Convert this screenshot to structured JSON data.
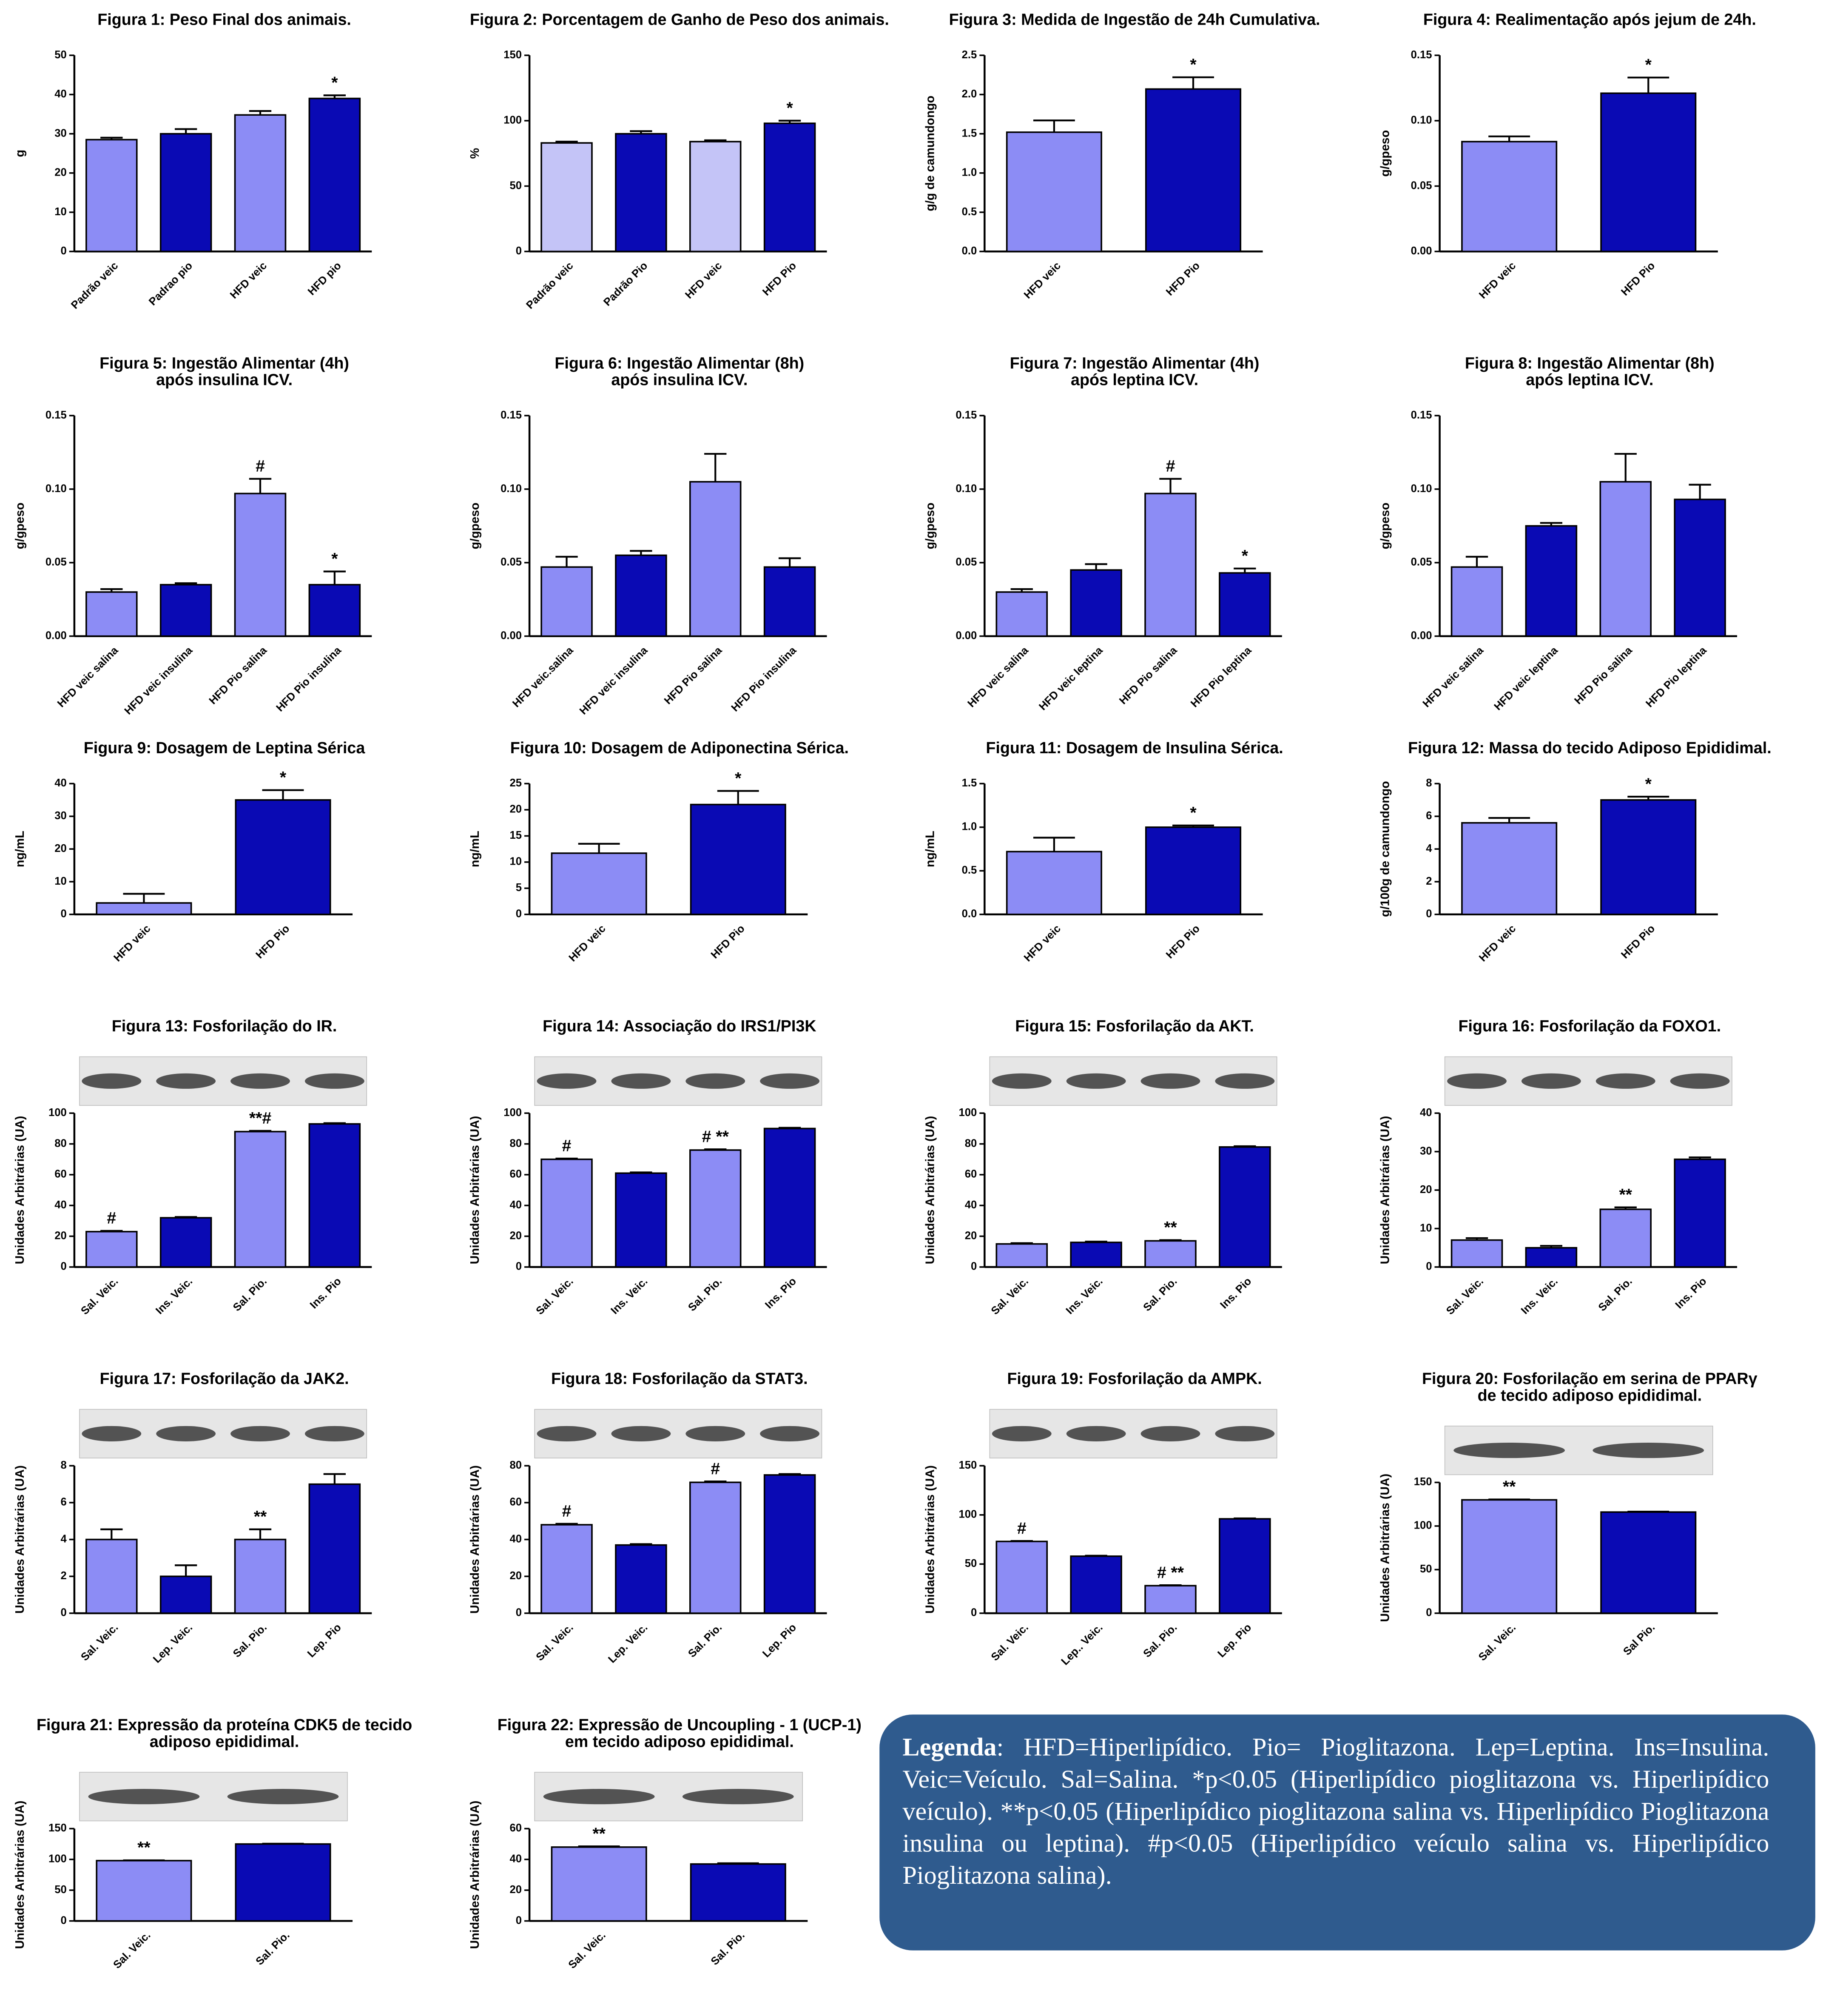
{
  "chart_data": [
    {
      "type": "bar",
      "title": [
        "Figura 1: Peso Final dos animais."
      ],
      "ylabel": "g",
      "categories": [
        "Padrão veic",
        "Padrao pio",
        "HFD veic",
        "HFD pio"
      ],
      "values": [
        28.5,
        30,
        34.8,
        39
      ],
      "errors": [
        0.5,
        1.2,
        1,
        0.8
      ],
      "colors": [
        "#8c8cf5",
        "#0a0ab4",
        "#8c8cf5",
        "#0a0ab4"
      ],
      "markers": [
        null,
        null,
        null,
        "*"
      ],
      "ylim": [
        0,
        50
      ],
      "yticks": [
        0,
        10,
        20,
        30,
        40,
        50
      ]
    },
    {
      "type": "bar",
      "title": [
        "Figura 2: Porcentagem de Ganho de Peso dos animais."
      ],
      "ylabel": "%",
      "categories": [
        "Padrão veic",
        "Padrão Pio",
        "HFD veic",
        "HFD Pio"
      ],
      "values": [
        83,
        90,
        84,
        98
      ],
      "errors": [
        1,
        2,
        1,
        2
      ],
      "colors": [
        "#c4c4f7",
        "#0a0ab4",
        "#c4c4f7",
        "#0a0ab4"
      ],
      "markers": [
        null,
        null,
        null,
        "*"
      ],
      "ylim": [
        0,
        150
      ],
      "yticks": [
        0,
        50,
        100,
        150
      ]
    },
    {
      "type": "bar",
      "title": [
        "Figura 3: Medida de Ingestão de 24h Cumulativa."
      ],
      "ylabel": "g/g de camundongo",
      "categories": [
        "HFD veic",
        "HFD Pio"
      ],
      "values": [
        1.52,
        2.07
      ],
      "errors": [
        0.15,
        0.15
      ],
      "colors": [
        "#8c8cf5",
        "#0a0ab4"
      ],
      "markers": [
        null,
        "*"
      ],
      "ylim": [
        0,
        2.5
      ],
      "yticks": [
        {
          "value": 0,
          "label": "0.0"
        },
        {
          "value": 0.5,
          "label": "0.5"
        },
        {
          "value": 1,
          "label": "1.0"
        },
        {
          "value": 1.5,
          "label": "1.5"
        },
        {
          "value": 2,
          "label": "2.0"
        },
        {
          "value": 2.5,
          "label": "2.5"
        }
      ]
    },
    {
      "type": "bar",
      "title": [
        "Figura 4: Realimentação após jejum de 24h."
      ],
      "ylabel": "g/gpeso",
      "categories": [
        "HFD veic",
        "HFD Pio"
      ],
      "values": [
        0.084,
        0.121
      ],
      "errors": [
        0.004,
        0.012
      ],
      "colors": [
        "#8c8cf5",
        "#0a0ab4"
      ],
      "markers": [
        null,
        "*"
      ],
      "ylim": [
        0,
        0.15
      ],
      "yticks": [
        {
          "value": 0,
          "label": "0.00"
        },
        {
          "value": 0.05,
          "label": "0.05"
        },
        {
          "value": 0.1,
          "label": "0.10"
        },
        {
          "value": 0.15,
          "label": "0.15"
        }
      ]
    },
    {
      "type": "bar",
      "title": [
        "Figura 5: Ingestão Alimentar (4h)",
        "após insulina ICV."
      ],
      "ylabel": "g/gpeso",
      "categories": [
        "HFD veic salina",
        "HFD veic insulina",
        "HFD Pio salina",
        "HFD Pio insulina"
      ],
      "values": [
        0.03,
        0.035,
        0.097,
        0.035
      ],
      "errors": [
        0.002,
        0.001,
        0.01,
        0.009
      ],
      "colors": [
        "#8c8cf5",
        "#0a0ab4",
        "#8c8cf5",
        "#0a0ab4"
      ],
      "markers": [
        null,
        null,
        "#",
        "*"
      ],
      "ylim": [
        0,
        0.15
      ],
      "yticks": [
        {
          "value": 0,
          "label": "0.00"
        },
        {
          "value": 0.05,
          "label": "0.05"
        },
        {
          "value": 0.1,
          "label": "0.10"
        },
        {
          "value": 0.15,
          "label": "0.15"
        }
      ]
    },
    {
      "type": "bar",
      "title": [
        "Figura 6: Ingestão Alimentar (8h)",
        "após insulina ICV."
      ],
      "ylabel": "g/gpeso",
      "categories": [
        "HFD veic.salina",
        "HFD veic insulina",
        "HFD Pio salina",
        "HFD Pio insulina"
      ],
      "values": [
        0.047,
        0.055,
        0.105,
        0.047
      ],
      "errors": [
        0.007,
        0.003,
        0.019,
        0.006
      ],
      "colors": [
        "#8c8cf5",
        "#0a0ab4",
        "#8c8cf5",
        "#0a0ab4"
      ],
      "ylim": [
        0,
        0.15
      ],
      "yticks": [
        {
          "value": 0,
          "label": "0.00"
        },
        {
          "value": 0.05,
          "label": "0.05"
        },
        {
          "value": 0.1,
          "label": "0.10"
        },
        {
          "value": 0.15,
          "label": "0.15"
        }
      ]
    },
    {
      "type": "bar",
      "title": [
        "Figura 7: Ingestão Alimentar (4h)",
        "após leptina ICV."
      ],
      "ylabel": "g/gpeso",
      "categories": [
        "HFD veic salina",
        "HFD veic leptina",
        "HFD Pio salina",
        "HFD Pio leptina"
      ],
      "values": [
        0.03,
        0.045,
        0.097,
        0.043
      ],
      "errors": [
        0.002,
        0.004,
        0.01,
        0.003
      ],
      "colors": [
        "#8c8cf5",
        "#0a0ab4",
        "#8c8cf5",
        "#0a0ab4"
      ],
      "markers": [
        null,
        null,
        "#",
        "*"
      ],
      "ylim": [
        0,
        0.15
      ],
      "yticks": [
        {
          "value": 0,
          "label": "0.00"
        },
        {
          "value": 0.05,
          "label": "0.05"
        },
        {
          "value": 0.1,
          "label": "0.10"
        },
        {
          "value": 0.15,
          "label": "0.15"
        }
      ]
    },
    {
      "type": "bar",
      "title": [
        "Figura 8: Ingestão Alimentar (8h)",
        "após leptina ICV."
      ],
      "ylabel": "g/gpeso",
      "categories": [
        "HFD veic salina",
        "HFD veic leptina",
        "HFD Pio salina",
        "HFD Pio leptina"
      ],
      "values": [
        0.047,
        0.075,
        0.105,
        0.093
      ],
      "errors": [
        0.007,
        0.002,
        0.019,
        0.01
      ],
      "colors": [
        "#8c8cf5",
        "#0a0ab4",
        "#8c8cf5",
        "#0a0ab4"
      ],
      "ylim": [
        0,
        0.15
      ],
      "yticks": [
        {
          "value": 0,
          "label": "0.00"
        },
        {
          "value": 0.05,
          "label": "0.05"
        },
        {
          "value": 0.1,
          "label": "0.10"
        },
        {
          "value": 0.15,
          "label": "0.15"
        }
      ]
    },
    {
      "type": "bar",
      "title": [
        "Figura 9: Dosagem de Leptina Sérica"
      ],
      "ylabel": "ng/mL",
      "categories": [
        "HFD veic",
        "HFD Pio"
      ],
      "values": [
        3.5,
        35
      ],
      "errors": [
        2.8,
        3
      ],
      "colors": [
        "#8c8cf5",
        "#0a0ab4"
      ],
      "markers": [
        null,
        "*"
      ],
      "ylim": [
        0,
        40
      ],
      "yticks": [
        0,
        10,
        20,
        30,
        40
      ]
    },
    {
      "type": "bar",
      "title": [
        "Figura 10: Dosagem de Adiponectina Sérica."
      ],
      "ylabel": "ng/mL",
      "categories": [
        "HFD veic",
        "HFD Pio"
      ],
      "values": [
        11.7,
        21
      ],
      "errors": [
        1.8,
        2.6
      ],
      "colors": [
        "#8c8cf5",
        "#0a0ab4"
      ],
      "markers": [
        null,
        "*"
      ],
      "ylim": [
        0,
        25
      ],
      "yticks": [
        0,
        5,
        10,
        15,
        20,
        25
      ]
    },
    {
      "type": "bar",
      "title": [
        "Figura 11: Dosagem de Insulina Sérica."
      ],
      "ylabel": "ng/mL",
      "categories": [
        "HFD veic",
        "HFD Pio"
      ],
      "values": [
        0.72,
        1.0
      ],
      "errors": [
        0.16,
        0.02
      ],
      "colors": [
        "#8c8cf5",
        "#0a0ab4"
      ],
      "markers": [
        null,
        "*"
      ],
      "ylim": [
        0,
        1.5
      ],
      "yticks": [
        {
          "value": 0,
          "label": "0.0"
        },
        {
          "value": 0.5,
          "label": "0.5"
        },
        {
          "value": 1,
          "label": "1.0"
        },
        {
          "value": 1.5,
          "label": "1.5"
        }
      ]
    },
    {
      "type": "bar",
      "title": [
        "Figura 12: Massa do tecido Adiposo Epididimal."
      ],
      "ylabel": "g/100g de camundongo",
      "categories": [
        "HFD veic",
        "HFD Pio"
      ],
      "values": [
        5.6,
        7.0
      ],
      "errors": [
        0.3,
        0.2
      ],
      "colors": [
        "#8c8cf5",
        "#0a0ab4"
      ],
      "markers": [
        null,
        "*"
      ],
      "ylim": [
        0,
        8
      ],
      "yticks": [
        0,
        2,
        4,
        6,
        8
      ]
    },
    {
      "type": "bar",
      "title": [
        "Figura 13: Fosforilação do IR."
      ],
      "ylabel": "Unidades Arbitrárias (UA)",
      "blot": true,
      "categories": [
        "Sal. Veic.",
        "Ins. Veic.",
        "Sal. Pio.",
        "Ins. Pio"
      ],
      "values": [
        23,
        32,
        88,
        93
      ],
      "errors": [
        0.5,
        0.5,
        0.5,
        0.5
      ],
      "colors": [
        "#8c8cf5",
        "#0a0ab4",
        "#8c8cf5",
        "#0a0ab4"
      ],
      "markers": [
        "#",
        null,
        "**#",
        null
      ],
      "ylim": [
        0,
        100
      ],
      "yticks": [
        0,
        20,
        40,
        60,
        80,
        100
      ]
    },
    {
      "type": "bar",
      "title": [
        "Figura 14: Associação do IRS1/PI3K"
      ],
      "ylabel": "Unidades Arbitrárias (UA)",
      "blot": true,
      "categories": [
        "Sal. Veic.",
        "Ins. Veic.",
        "Sal. Pio.",
        "Ins. Pio"
      ],
      "values": [
        70,
        61,
        76,
        90
      ],
      "errors": [
        0.5,
        0.5,
        0.5,
        0.5
      ],
      "colors": [
        "#8c8cf5",
        "#0a0ab4",
        "#8c8cf5",
        "#0a0ab4"
      ],
      "markers": [
        "#",
        null,
        "# **",
        null
      ],
      "ylim": [
        0,
        100
      ],
      "yticks": [
        0,
        20,
        40,
        60,
        80,
        100
      ]
    },
    {
      "type": "bar",
      "title": [
        "Figura 15: Fosforilação da AKT."
      ],
      "ylabel": "Unidades Arbitrárias (UA)",
      "blot": true,
      "categories": [
        "Sal. Veic.",
        "Ins. Veic.",
        "Sal. Pio.",
        "Ins. Pio"
      ],
      "values": [
        15,
        16,
        17,
        78
      ],
      "errors": [
        0.5,
        0.5,
        0.5,
        0.5
      ],
      "colors": [
        "#8c8cf5",
        "#0a0ab4",
        "#8c8cf5",
        "#0a0ab4"
      ],
      "markers": [
        null,
        null,
        "**",
        null
      ],
      "ylim": [
        0,
        100
      ],
      "yticks": [
        0,
        20,
        40,
        60,
        80,
        100
      ]
    },
    {
      "type": "bar",
      "title": [
        "Figura 16: Fosforilação da FOXO1."
      ],
      "ylabel": "Unidades Arbitrárias (UA)",
      "blot": true,
      "categories": [
        "Sal. Veic.",
        "Ins. Veic.",
        "Sal. Pio.",
        "Ins. Pio"
      ],
      "values": [
        7,
        5,
        15,
        28
      ],
      "errors": [
        0.5,
        0.5,
        0.5,
        0.5
      ],
      "colors": [
        "#8c8cf5",
        "#0a0ab4",
        "#8c8cf5",
        "#0a0ab4"
      ],
      "markers": [
        null,
        null,
        "**",
        null
      ],
      "ylim": [
        0,
        40
      ],
      "yticks": [
        0,
        10,
        20,
        30,
        40
      ]
    },
    {
      "type": "bar",
      "title": [
        "Figura 17: Fosforilação da JAK2."
      ],
      "ylabel": "Unidades Arbitrárias (UA)",
      "blot": true,
      "categories": [
        "Sal. Veic.",
        "Lep. Veic.",
        "Sal. Pio.",
        "Lep. Pio"
      ],
      "values": [
        4,
        2,
        4,
        7
      ],
      "errors": [
        0.55,
        0.6,
        0.55,
        0.55
      ],
      "colors": [
        "#8c8cf5",
        "#0a0ab4",
        "#8c8cf5",
        "#0a0ab4"
      ],
      "markers": [
        null,
        null,
        "**",
        null
      ],
      "ylim": [
        0,
        8
      ],
      "yticks": [
        0,
        2,
        4,
        6,
        8
      ]
    },
    {
      "type": "bar",
      "title": [
        "Figura 18: Fosforilação da STAT3."
      ],
      "ylabel": "Unidades Arbitrárias (UA)",
      "blot": true,
      "categories": [
        "Sal. Veic.",
        "Lep. Veic.",
        "Sal. Pio.",
        "Lep. Pio"
      ],
      "values": [
        48,
        37,
        71,
        75
      ],
      "errors": [
        0.5,
        0.5,
        0.5,
        0.5
      ],
      "colors": [
        "#8c8cf5",
        "#0a0ab4",
        "#8c8cf5",
        "#0a0ab4"
      ],
      "markers": [
        "#",
        null,
        "#",
        null
      ],
      "ylim": [
        0,
        80
      ],
      "yticks": [
        0,
        20,
        40,
        60,
        80
      ]
    },
    {
      "type": "bar",
      "title": [
        "Figura 19: Fosforilação da AMPK."
      ],
      "ylabel": "Unidades Arbitrárias (UA)",
      "blot": true,
      "categories": [
        "Sal. Veic.",
        "Lep.. Veic.",
        "Sal. Pio.",
        "Lep. Pio"
      ],
      "values": [
        73,
        58,
        28,
        96
      ],
      "errors": [
        0.5,
        0.5,
        0.5,
        0.5
      ],
      "colors": [
        "#8c8cf5",
        "#0a0ab4",
        "#8c8cf5",
        "#0a0ab4"
      ],
      "markers": [
        "#",
        null,
        "# **",
        null
      ],
      "ylim": [
        0,
        150
      ],
      "yticks": [
        0,
        50,
        100,
        150
      ]
    },
    {
      "type": "bar",
      "title": [
        "Figura 20: Fosforilação em serina de PPARγ",
        "de tecido adiposo epididimal."
      ],
      "ylabel": "Unidades Arbitrárias (UA)",
      "blot": true,
      "categories": [
        "Sal. Veic.",
        "Sal Pio."
      ],
      "values": [
        130,
        116
      ],
      "errors": [
        0.5,
        0.5
      ],
      "colors": [
        "#8c8cf5",
        "#0a0ab4"
      ],
      "markers": [
        "**",
        null
      ],
      "ylim": [
        0,
        150
      ],
      "yticks": [
        0,
        50,
        100,
        150
      ]
    },
    {
      "type": "bar",
      "title": [
        "Figura 21: Expressão da proteína CDK5 de tecido",
        "adiposo epididimal."
      ],
      "ylabel": "Unidades Arbitrárias (UA)",
      "blot": true,
      "categories": [
        "Sal. Veic.",
        "Sal. Pio."
      ],
      "values": [
        98,
        125
      ],
      "errors": [
        0.5,
        0.5
      ],
      "colors": [
        "#8c8cf5",
        "#0a0ab4"
      ],
      "markers": [
        "**",
        null
      ],
      "ylim": [
        0,
        150
      ],
      "yticks": [
        0,
        50,
        100,
        150
      ]
    },
    {
      "type": "bar",
      "title": [
        "Figura 22: Expressão de Uncoupling - 1 (UCP-1)",
        "em tecido adiposo epididimal."
      ],
      "ylabel": "Unidades Arbitrárias (UA)",
      "blot": true,
      "categories": [
        "Sal. Veic.",
        "Sal. Pio."
      ],
      "values": [
        48,
        37
      ],
      "errors": [
        0.5,
        0.5
      ],
      "colors": [
        "#8c8cf5",
        "#0a0ab4"
      ],
      "markers": [
        "**",
        null
      ],
      "ylim": [
        0,
        60
      ],
      "yticks": [
        0,
        20,
        40,
        60
      ]
    }
  ],
  "legend_note": {
    "label": "Legenda",
    "text": ": HFD=Hiperlipídico. Pio= Pioglitazona. Lep=Leptina. Ins=Insulina. Veic=Veículo. Sal=Salina. *p<0.05 (Hiperlipídico pioglitazona vs. Hiperlipídico veículo). **p<0.05 (Hiperlipídico pioglitazona salina vs. Hiperlipídico Pioglitazona insulina ou leptina). #p<0.05 (Hiperlipídico veículo salina vs. Hiperlipídico Pioglitazona salina)."
  }
}
